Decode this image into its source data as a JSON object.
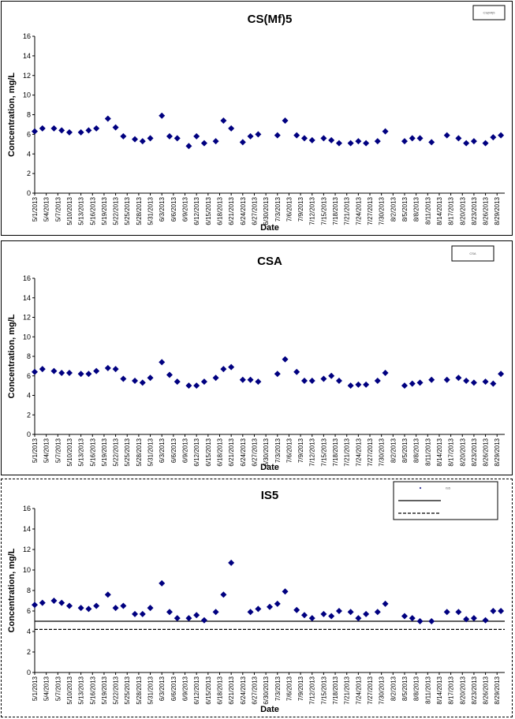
{
  "chart_data": [
    {
      "type": "scatter",
      "title": "CS(Mf)5",
      "xlabel": "Date",
      "ylabel": "Concentration, mg/L",
      "ylim": [
        0,
        16
      ],
      "yticks": [
        0,
        2,
        4,
        6,
        8,
        10,
        12,
        14,
        16
      ],
      "x_start": "5/1/2013",
      "x_end": "8/31/2013",
      "x_tick_labels": [
        "5/1/2013",
        "5/4/2013",
        "5/7/2013",
        "5/10/2013",
        "5/13/2013",
        "5/16/2013",
        "5/19/2013",
        "5/22/2013",
        "5/25/2013",
        "5/28/2013",
        "5/31/2013",
        "6/3/2013",
        "6/6/2013",
        "6/9/2013",
        "6/12/2013",
        "6/15/2013",
        "6/18/2013",
        "6/21/2013",
        "6/24/2013",
        "6/27/2013",
        "6/30/2013",
        "7/3/2013",
        "7/6/2013",
        "7/9/2013",
        "7/12/2013",
        "7/15/2013",
        "7/18/2013",
        "7/21/2013",
        "7/24/2013",
        "7/27/2013",
        "7/30/2013",
        "8/2/2013",
        "8/5/2013",
        "8/8/2013",
        "8/11/2013",
        "8/14/2013",
        "8/17/2013",
        "8/20/2013",
        "8/23/2013",
        "8/26/2013",
        "8/29/2013"
      ],
      "marker_color": "#000080",
      "legend": {
        "position": "top-right",
        "entries": [
          {
            "text": "CS(Mf)5"
          }
        ]
      },
      "series": [
        {
          "marker": "diamond",
          "x": [
            "5/1/2013",
            "5/3/2013",
            "5/6/2013",
            "5/8/2013",
            "5/10/2013",
            "5/13/2013",
            "5/15/2013",
            "5/17/2013",
            "5/20/2013",
            "5/22/2013",
            "5/24/2013",
            "5/27/2013",
            "5/29/2013",
            "5/31/2013",
            "6/3/2013",
            "6/5/2013",
            "6/7/2013",
            "6/10/2013",
            "6/12/2013",
            "6/14/2013",
            "6/17/2013",
            "6/19/2013",
            "6/21/2013",
            "6/24/2013",
            "6/26/2013",
            "6/28/2013",
            "7/3/2013",
            "7/5/2013",
            "7/8/2013",
            "7/10/2013",
            "7/12/2013",
            "7/15/2013",
            "7/17/2013",
            "7/19/2013",
            "7/22/2013",
            "7/24/2013",
            "7/26/2013",
            "7/29/2013",
            "7/31/2013",
            "8/5/2013",
            "8/7/2013",
            "8/9/2013",
            "8/12/2013",
            "8/16/2013",
            "8/19/2013",
            "8/21/2013",
            "8/23/2013",
            "8/26/2013",
            "8/28/2013",
            "8/30/2013"
          ],
          "y": [
            6.3,
            6.6,
            6.6,
            6.4,
            6.2,
            6.2,
            6.4,
            6.6,
            7.6,
            6.7,
            5.8,
            5.5,
            5.3,
            5.6,
            7.9,
            5.8,
            5.6,
            4.8,
            5.8,
            5.1,
            5.3,
            7.4,
            6.6,
            5.2,
            5.8,
            6.0,
            5.9,
            7.4,
            5.9,
            5.6,
            5.4,
            5.6,
            5.4,
            5.1,
            5.1,
            5.3,
            5.1,
            5.3,
            6.3,
            5.3,
            5.6,
            5.6,
            5.2,
            5.9,
            5.6,
            5.1,
            5.3,
            5.1,
            5.7,
            5.9
          ]
        }
      ]
    },
    {
      "type": "scatter",
      "title": "CSA",
      "xlabel": "Date",
      "ylabel": "Concentration, mg/L",
      "ylim": [
        0,
        16
      ],
      "yticks": [
        0,
        2,
        4,
        6,
        8,
        10,
        12,
        14,
        16
      ],
      "x_start": "5/1/2013",
      "x_end": "8/31/2013",
      "x_tick_labels": [
        "5/1/2013",
        "5/4/2013",
        "5/7/2013",
        "5/10/2013",
        "5/13/2013",
        "5/16/2013",
        "5/19/2013",
        "5/22/2013",
        "5/25/2013",
        "5/28/2013",
        "5/31/2013",
        "6/3/2013",
        "6/6/2013",
        "6/9/2013",
        "6/12/2013",
        "6/15/2013",
        "6/18/2013",
        "6/21/2013",
        "6/24/2013",
        "6/27/2013",
        "6/30/2013",
        "7/3/2013",
        "7/6/2013",
        "7/9/2013",
        "7/12/2013",
        "7/15/2013",
        "7/18/2013",
        "7/21/2013",
        "7/24/2013",
        "7/27/2013",
        "7/30/2013",
        "8/2/2013",
        "8/5/2013",
        "8/8/2013",
        "8/11/2013",
        "8/14/2013",
        "8/17/2013",
        "8/20/2013",
        "8/23/2013",
        "8/26/2013",
        "8/29/2013"
      ],
      "marker_color": "#000080",
      "legend": {
        "position": "top-right",
        "entries": [
          {
            "text": "CSA"
          }
        ]
      },
      "series": [
        {
          "marker": "diamond",
          "x": [
            "5/1/2013",
            "5/3/2013",
            "5/6/2013",
            "5/8/2013",
            "5/10/2013",
            "5/13/2013",
            "5/15/2013",
            "5/17/2013",
            "5/20/2013",
            "5/22/2013",
            "5/24/2013",
            "5/27/2013",
            "5/29/2013",
            "5/31/2013",
            "6/3/2013",
            "6/5/2013",
            "6/7/2013",
            "6/10/2013",
            "6/12/2013",
            "6/14/2013",
            "6/17/2013",
            "6/19/2013",
            "6/21/2013",
            "6/24/2013",
            "6/26/2013",
            "6/28/2013",
            "7/3/2013",
            "7/5/2013",
            "7/8/2013",
            "7/10/2013",
            "7/12/2013",
            "7/15/2013",
            "7/17/2013",
            "7/19/2013",
            "7/22/2013",
            "7/24/2013",
            "7/26/2013",
            "7/29/2013",
            "7/31/2013",
            "8/5/2013",
            "8/7/2013",
            "8/9/2013",
            "8/12/2013",
            "8/16/2013",
            "8/19/2013",
            "8/21/2013",
            "8/23/2013",
            "8/26/2013",
            "8/28/2013",
            "8/30/2013"
          ],
          "y": [
            6.4,
            6.7,
            6.5,
            6.3,
            6.3,
            6.2,
            6.2,
            6.5,
            6.8,
            6.7,
            5.7,
            5.5,
            5.3,
            5.8,
            7.4,
            6.1,
            5.4,
            5.0,
            5.0,
            5.4,
            5.8,
            6.7,
            6.9,
            5.6,
            5.6,
            5.4,
            6.2,
            7.7,
            6.4,
            5.5,
            5.5,
            5.7,
            6.0,
            5.5,
            5.0,
            5.1,
            5.1,
            5.5,
            6.3,
            5.0,
            5.2,
            5.3,
            5.6,
            5.6,
            5.8,
            5.5,
            5.3,
            5.4,
            5.2,
            6.2
          ]
        }
      ]
    },
    {
      "type": "scatter",
      "title": "IS5",
      "xlabel": "Date",
      "ylabel": "Concentration, mg/L",
      "ylim": [
        0,
        16
      ],
      "yticks": [
        0,
        2,
        4,
        6,
        8,
        10,
        12,
        14,
        16
      ],
      "x_start": "5/1/2013",
      "x_end": "8/31/2013",
      "x_tick_labels": [
        "5/1/2013",
        "5/4/2013",
        "5/7/2013",
        "5/10/2013",
        "5/13/2013",
        "5/16/2013",
        "5/19/2013",
        "5/22/2013",
        "5/25/2013",
        "5/28/2013",
        "5/31/2013",
        "6/3/2013",
        "6/6/2013",
        "6/9/2013",
        "6/12/2013",
        "6/15/2013",
        "6/18/2013",
        "6/21/2013",
        "6/24/2013",
        "6/27/2013",
        "6/30/2013",
        "7/3/2013",
        "7/6/2013",
        "7/9/2013",
        "7/12/2013",
        "7/15/2013",
        "7/18/2013",
        "7/21/2013",
        "7/24/2013",
        "7/27/2013",
        "7/30/2013",
        "8/2/2013",
        "8/5/2013",
        "8/8/2013",
        "8/11/2013",
        "8/14/2013",
        "8/17/2013",
        "8/20/2013",
        "8/23/2013",
        "8/26/2013",
        "8/29/2013"
      ],
      "marker_color": "#000080",
      "legend": {
        "position": "top-right",
        "entries": [
          {
            "text": "IS5",
            "style": "marker"
          },
          {
            "text": "",
            "style": "solid"
          },
          {
            "text": "",
            "style": "dashed"
          }
        ]
      },
      "reference_lines": [
        {
          "y": 5.0,
          "style": "solid"
        },
        {
          "y": 4.2,
          "style": "dashed"
        }
      ],
      "series": [
        {
          "marker": "diamond",
          "x": [
            "5/1/2013",
            "5/3/2013",
            "5/6/2013",
            "5/8/2013",
            "5/10/2013",
            "5/13/2013",
            "5/15/2013",
            "5/17/2013",
            "5/20/2013",
            "5/22/2013",
            "5/24/2013",
            "5/27/2013",
            "5/29/2013",
            "5/31/2013",
            "6/3/2013",
            "6/5/2013",
            "6/7/2013",
            "6/10/2013",
            "6/12/2013",
            "6/14/2013",
            "6/17/2013",
            "6/19/2013",
            "6/21/2013",
            "6/26/2013",
            "6/28/2013",
            "7/1/2013",
            "7/3/2013",
            "7/5/2013",
            "7/8/2013",
            "7/10/2013",
            "7/12/2013",
            "7/15/2013",
            "7/17/2013",
            "7/19/2013",
            "7/22/2013",
            "7/24/2013",
            "7/26/2013",
            "7/29/2013",
            "7/31/2013",
            "8/5/2013",
            "8/7/2013",
            "8/9/2013",
            "8/12/2013",
            "8/16/2013",
            "8/19/2013",
            "8/21/2013",
            "8/23/2013",
            "8/26/2013",
            "8/28/2013",
            "8/30/2013"
          ],
          "y": [
            6.6,
            6.8,
            7.0,
            6.8,
            6.5,
            6.3,
            6.2,
            6.5,
            7.6,
            6.3,
            6.5,
            5.7,
            5.7,
            6.3,
            8.7,
            5.9,
            5.3,
            5.3,
            5.6,
            5.1,
            5.9,
            7.6,
            10.7,
            5.9,
            6.2,
            6.4,
            6.7,
            7.9,
            6.1,
            5.6,
            5.3,
            5.7,
            5.5,
            6.0,
            5.9,
            5.3,
            5.7,
            5.9,
            6.7,
            5.5,
            5.3,
            5.0,
            5.0,
            5.9,
            5.9,
            5.2,
            5.3,
            5.1,
            6.0,
            6.0
          ]
        }
      ]
    }
  ]
}
